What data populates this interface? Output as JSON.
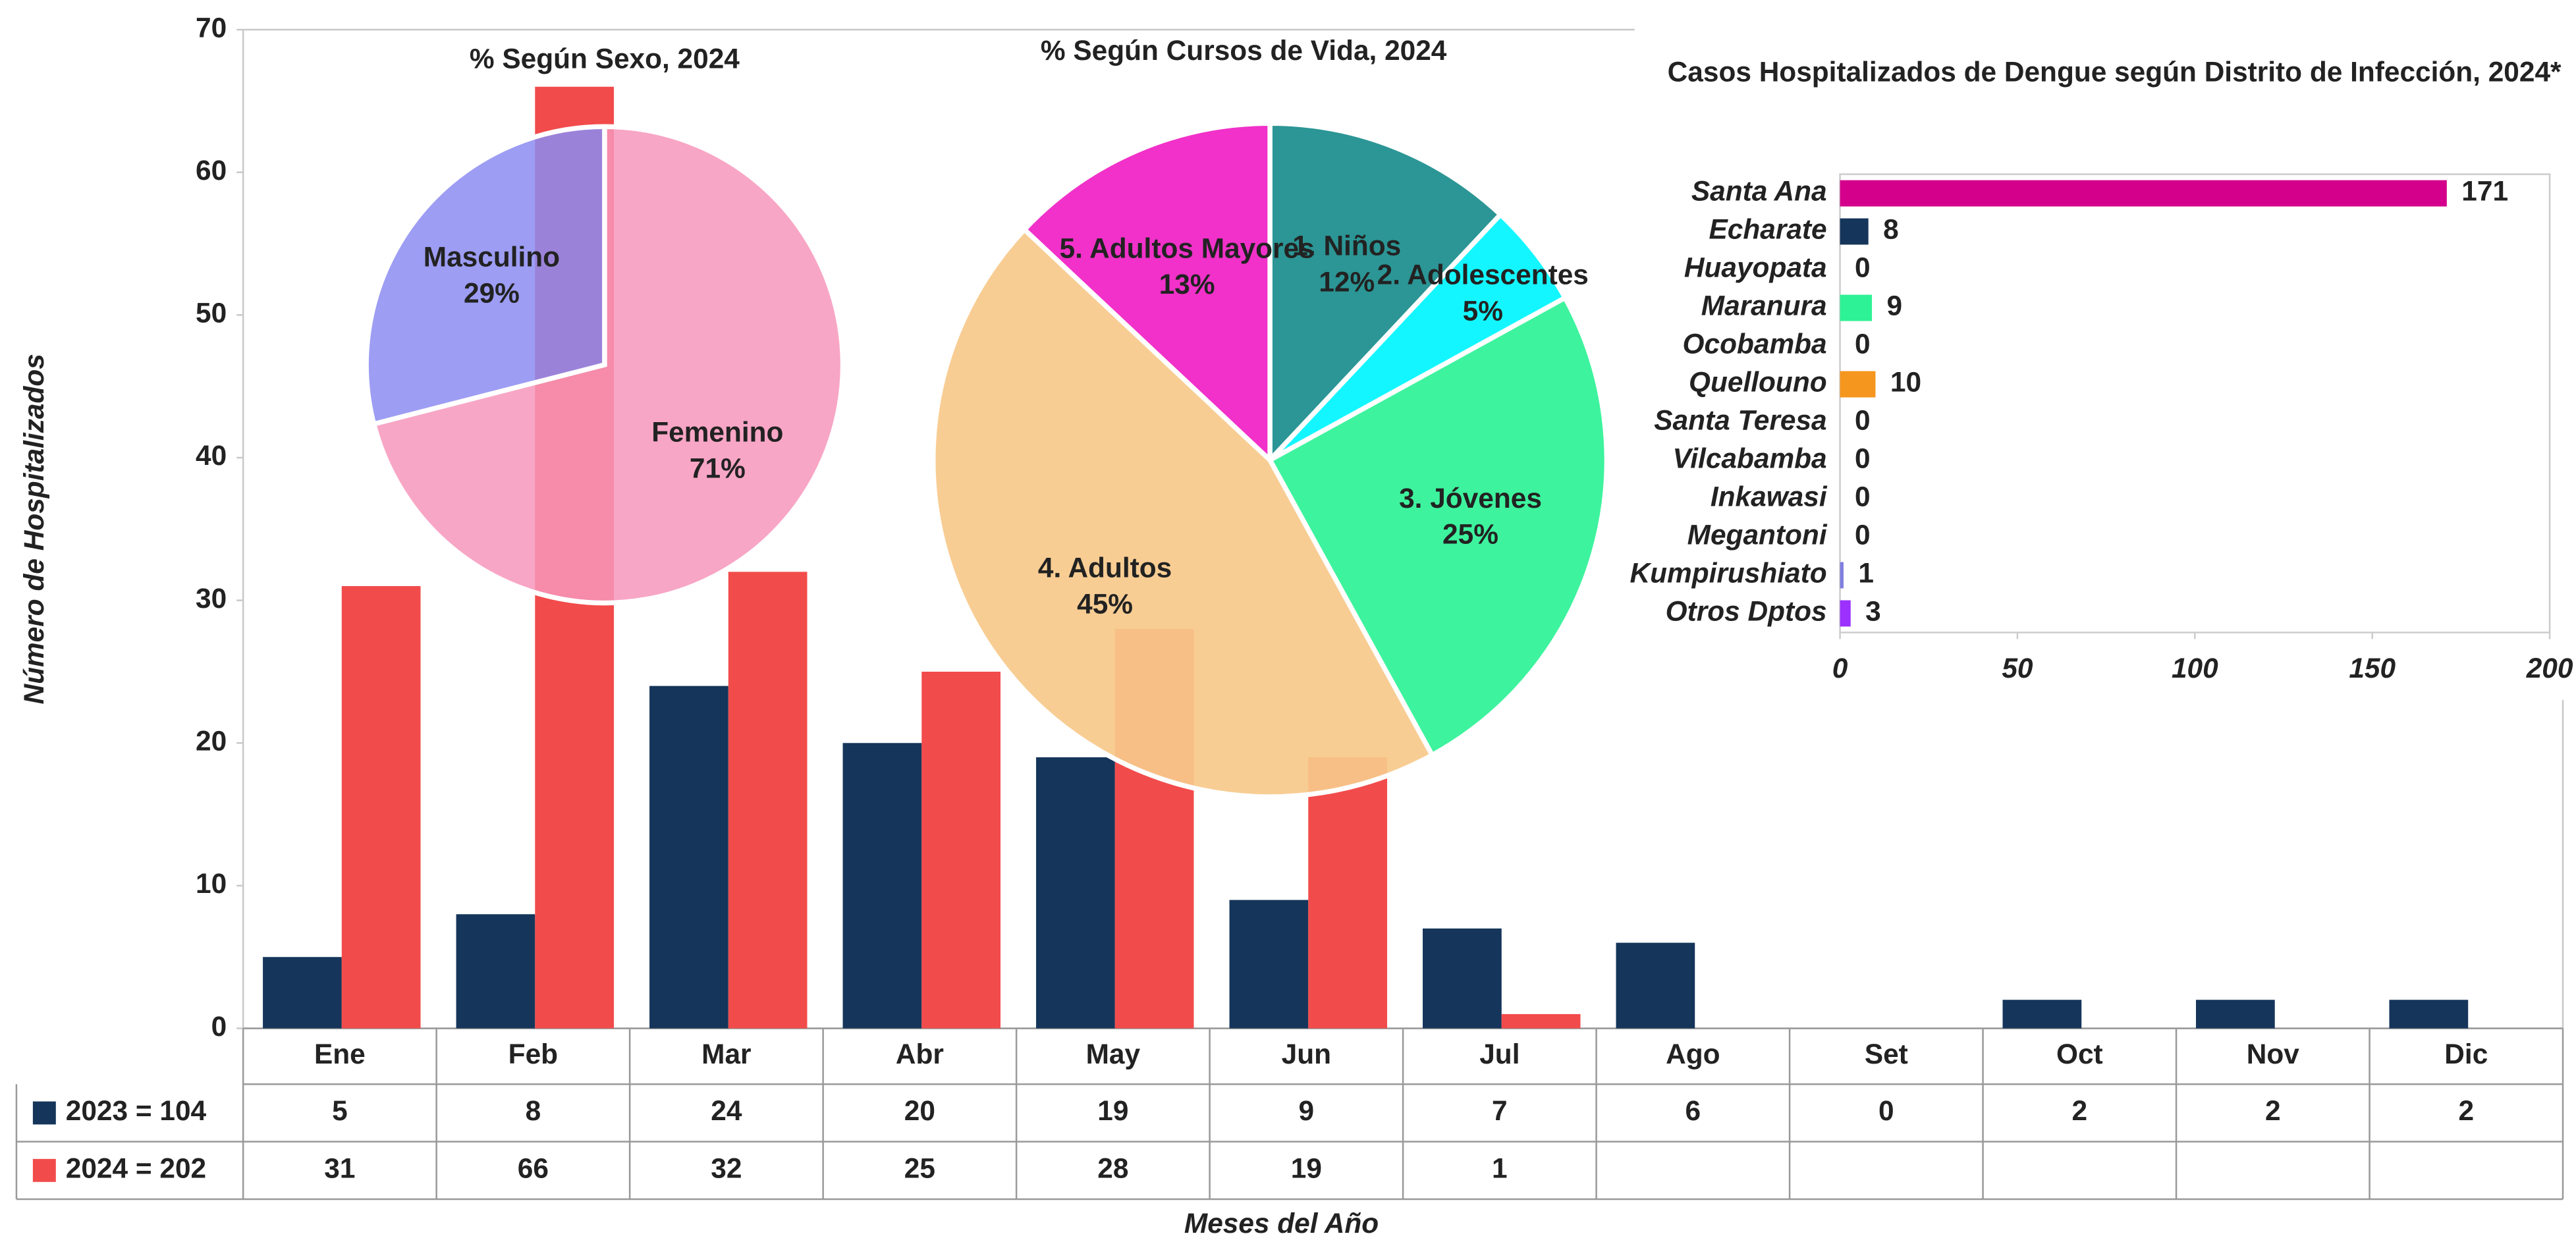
{
  "chart_data": [
    {
      "type": "bar",
      "y_label": "Número de Hospitalizados",
      "x_label": "Meses del Año",
      "categories": [
        "Ene",
        "Feb",
        "Mar",
        "Abr",
        "May",
        "Jun",
        "Jul",
        "Ago",
        "Set",
        "Oct",
        "Nov",
        "Dic"
      ],
      "series": [
        {
          "name": "2023 = 104",
          "color": "#15355a",
          "values": [
            5,
            8,
            24,
            20,
            19,
            9,
            7,
            6,
            0,
            2,
            2,
            2
          ]
        },
        {
          "name": "2024 = 202",
          "color": "#f24b4b",
          "values": [
            31,
            66,
            32,
            25,
            28,
            19,
            1,
            null,
            null,
            null,
            null,
            null
          ]
        }
      ],
      "ylim": [
        0,
        70
      ],
      "yticks": [
        0,
        10,
        20,
        30,
        40,
        50,
        60,
        70
      ],
      "grid": false
    },
    {
      "type": "pie",
      "title": "% Según Sexo, 2024",
      "categories": [
        "Femenino",
        "Masculino"
      ],
      "values": [
        71,
        29
      ],
      "value_labels": [
        "71%",
        "29%"
      ],
      "colors": [
        "#f797bb",
        "#8c8cf2"
      ]
    },
    {
      "type": "pie",
      "title": "% Según Cursos de Vida, 2024",
      "categories": [
        "1. Niños",
        "2. Adolescentes",
        "3. Jóvenes",
        "4. Adultos",
        "5. Adultos Mayores"
      ],
      "values": [
        12,
        5,
        25,
        45,
        13
      ],
      "value_labels": [
        "12%",
        "5%",
        "25%",
        "45%",
        "13%"
      ],
      "colors": [
        "#1a8c8c",
        "#00f5ff",
        "#2ef296",
        "#f7c98a",
        "#f020c4"
      ]
    },
    {
      "type": "hbar",
      "title": "Casos Hospitalizados de Dengue según Distrito de Infección, 2024*",
      "categories": [
        "Santa Ana",
        "Echarate",
        "Huayopata",
        "Maranura",
        "Ocobamba",
        "Quellouno",
        "Santa Teresa",
        "Vilcabamba",
        "Inkawasi",
        "Megantoni",
        "Kumpirushiato",
        "Otros Dptos"
      ],
      "values": [
        171,
        8,
        0,
        9,
        0,
        10,
        0,
        0,
        0,
        0,
        1,
        3
      ],
      "colors": [
        "#d4008c",
        "#15355a",
        null,
        "#2ef296",
        null,
        "#f5961e",
        null,
        null,
        null,
        null,
        "#7f7fe0",
        "#9b30ff"
      ],
      "xlim": [
        0,
        200
      ],
      "xticks": [
        0,
        50,
        100,
        150,
        200
      ]
    }
  ]
}
